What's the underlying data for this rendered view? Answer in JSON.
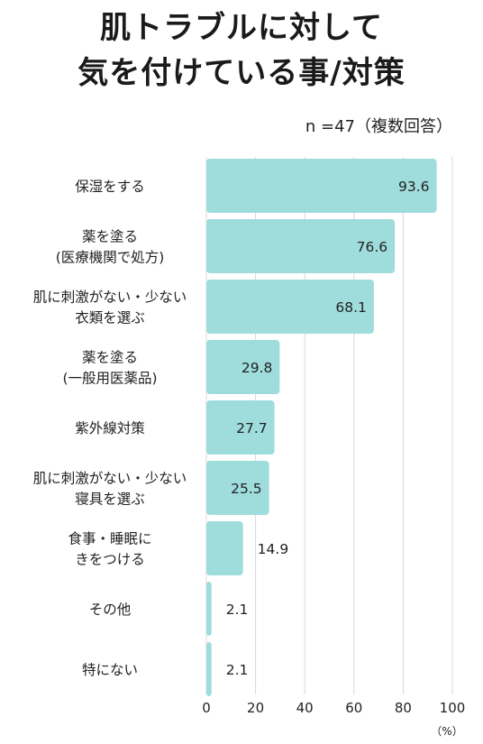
{
  "title_lines": [
    "肌トラブルに対して",
    "気を付けている事/対策"
  ],
  "sample_note": "n =47（複数回答）",
  "chart_data": {
    "type": "bar",
    "orientation": "horizontal",
    "categories": [
      [
        "保湿をする"
      ],
      [
        "薬を塗る",
        "(医療機関で処方)"
      ],
      [
        "肌に刺激がない・少ない",
        "衣類を選ぶ"
      ],
      [
        "薬を塗る",
        "(一般用医薬品)"
      ],
      [
        "紫外線対策"
      ],
      [
        "肌に刺激がない・少ない",
        "寝具を選ぶ"
      ],
      [
        "食事・睡眠に",
        "きをつける"
      ],
      [
        "その他"
      ],
      [
        "特にない"
      ]
    ],
    "values": [
      93.6,
      76.6,
      68.1,
      29.8,
      27.7,
      25.5,
      14.9,
      2.1,
      2.1
    ],
    "value_labels": [
      "93.6",
      "76.6",
      "68.1",
      "29.8",
      "27.7",
      "25.5",
      "14.9",
      "2.1",
      "2.1"
    ],
    "xlim": [
      0,
      100
    ],
    "xticks": [
      0,
      20,
      40,
      60,
      80,
      100
    ],
    "xtick_labels": [
      "0",
      "20",
      "40",
      "60",
      "80",
      "100"
    ],
    "unit_label": "（%）",
    "grid": true,
    "bar_color": "#9fdcdc",
    "grid_color": "#d8d8d8"
  }
}
